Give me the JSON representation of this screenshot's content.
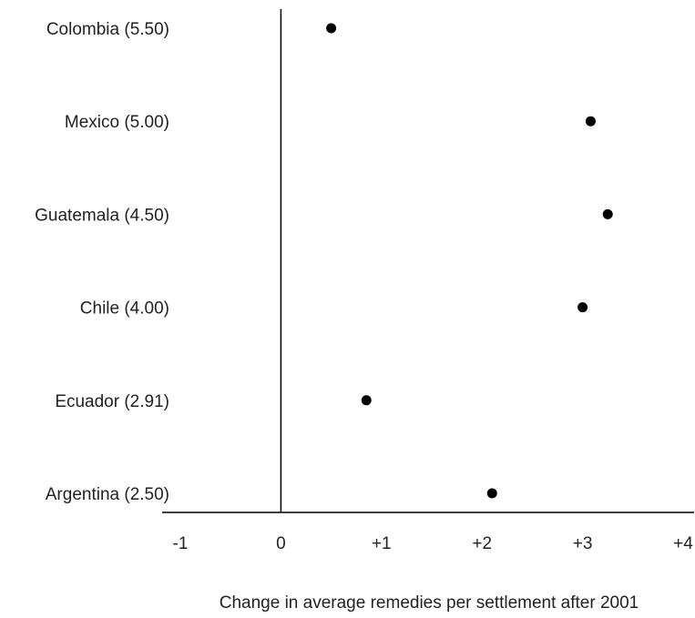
{
  "chart_data": {
    "type": "scatter",
    "title": "",
    "xlabel": "Change in average remedies per settlement after 2001",
    "ylabel": "",
    "xlim": [
      -1,
      4
    ],
    "x_ticks": [
      "-1",
      "0",
      "+1",
      "+2",
      "+3",
      "+4"
    ],
    "x_tick_values": [
      -1,
      0,
      1,
      2,
      3,
      4
    ],
    "grid": false,
    "legend": "none",
    "categories": [
      "Colombia (5.50)",
      "Mexico (5.00)",
      "Guatemala (4.50)",
      "Chile (4.00)",
      "Ecuador (2.91)",
      "Argentina (2.50)"
    ],
    "values": [
      0.5,
      3.08,
      3.25,
      3.0,
      0.85,
      2.1
    ],
    "colors": {
      "point": "#000000",
      "axis": "#000000",
      "text": "#222222"
    }
  }
}
